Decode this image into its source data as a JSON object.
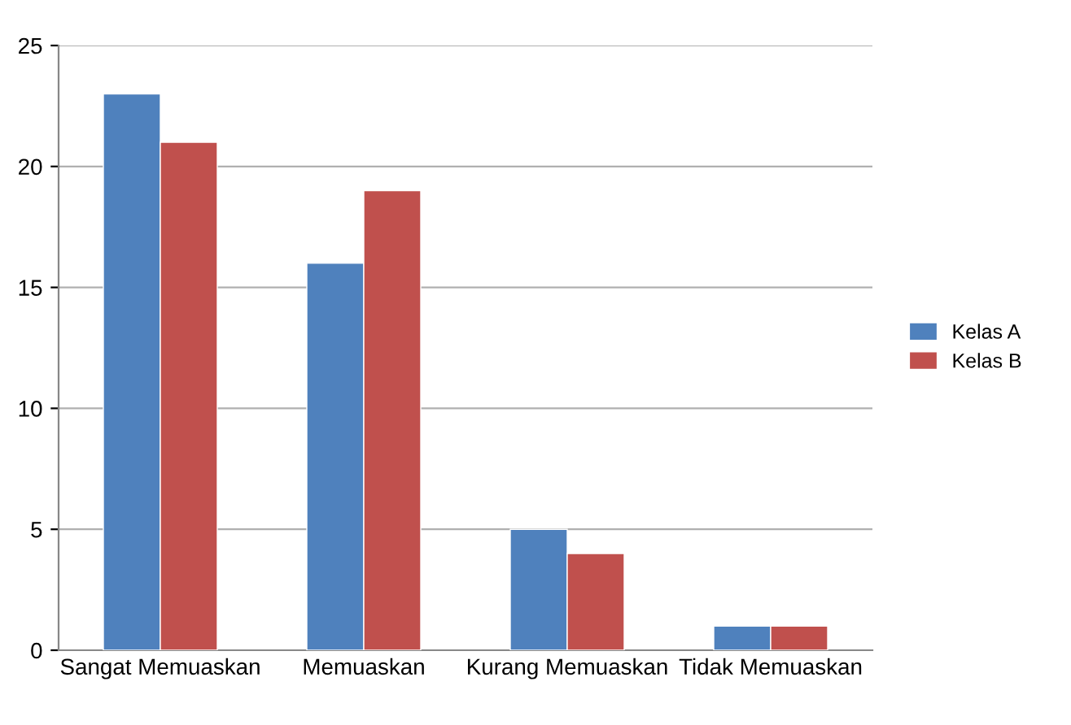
{
  "chart_data": {
    "type": "bar",
    "categories": [
      "Sangat Memuaskan",
      "Memuaskan",
      "Kurang Memuaskan",
      "Tidak Memuaskan"
    ],
    "series": [
      {
        "name": "Kelas A",
        "color": "#4f81bd",
        "values": [
          23,
          16,
          5,
          1
        ]
      },
      {
        "name": "Kelas B",
        "color": "#c0504d",
        "values": [
          21,
          19,
          4,
          1
        ]
      }
    ],
    "ylim": [
      0,
      25
    ],
    "yticks": [
      0,
      5,
      10,
      15,
      20,
      25
    ],
    "grid": "y",
    "legend": "right"
  }
}
